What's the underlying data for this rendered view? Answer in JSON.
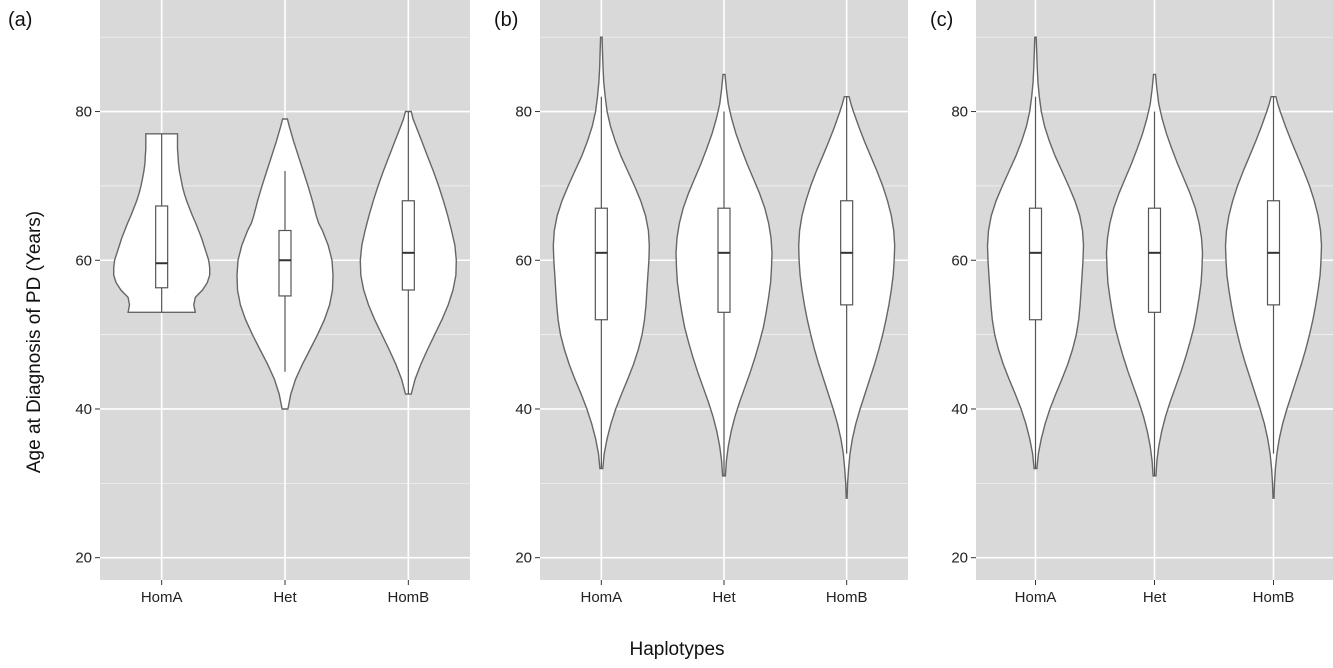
{
  "chart_data": [
    {
      "type": "violin",
      "panel_label": "(a)",
      "categories": [
        "HomA",
        "Het",
        "HomB"
      ],
      "ylim": [
        17,
        95
      ],
      "yticks": [
        20,
        40,
        60,
        80
      ],
      "grid": true,
      "distributions": [
        {
          "name": "HomA",
          "min": 53,
          "max": 77,
          "q1": 56.3,
          "median": 59.6,
          "q3": 67.3,
          "whisker_low": 53,
          "whisker_high": 77,
          "profile": [
            [
              53,
              0.7
            ],
            [
              54,
              0.67
            ],
            [
              55,
              0.7
            ],
            [
              56,
              0.85
            ],
            [
              57,
              0.95
            ],
            [
              58,
              1.0
            ],
            [
              59,
              1.0
            ],
            [
              60,
              0.98
            ],
            [
              61,
              0.93
            ],
            [
              62,
              0.88
            ],
            [
              63,
              0.83
            ],
            [
              64,
              0.77
            ],
            [
              65,
              0.71
            ],
            [
              66,
              0.64
            ],
            [
              67,
              0.58
            ],
            [
              68,
              0.52
            ],
            [
              69,
              0.47
            ],
            [
              70,
              0.43
            ],
            [
              71,
              0.4
            ],
            [
              72,
              0.37
            ],
            [
              73,
              0.35
            ],
            [
              74,
              0.34
            ],
            [
              75,
              0.33
            ],
            [
              76,
              0.33
            ],
            [
              77,
              0.33
            ]
          ]
        },
        {
          "name": "Het",
          "min": 40,
          "max": 79,
          "q1": 55.2,
          "median": 60,
          "q3": 64,
          "whisker_low": 45,
          "whisker_high": 72,
          "profile": [
            [
              40,
              0.06
            ],
            [
              42,
              0.12
            ],
            [
              44,
              0.22
            ],
            [
              46,
              0.36
            ],
            [
              48,
              0.52
            ],
            [
              50,
              0.68
            ],
            [
              52,
              0.82
            ],
            [
              54,
              0.93
            ],
            [
              56,
              0.99
            ],
            [
              58,
              1.0
            ],
            [
              60,
              0.98
            ],
            [
              62,
              0.9
            ],
            [
              64,
              0.78
            ],
            [
              65,
              0.7
            ],
            [
              66,
              0.65
            ],
            [
              68,
              0.57
            ],
            [
              70,
              0.48
            ],
            [
              72,
              0.38
            ],
            [
              74,
              0.28
            ],
            [
              76,
              0.18
            ],
            [
              78,
              0.09
            ],
            [
              79,
              0.05
            ]
          ]
        },
        {
          "name": "HomB",
          "min": 42,
          "max": 80,
          "q1": 56,
          "median": 61,
          "q3": 68,
          "whisker_low": 42,
          "whisker_high": 80,
          "profile": [
            [
              42,
              0.06
            ],
            [
              44,
              0.14
            ],
            [
              46,
              0.26
            ],
            [
              48,
              0.4
            ],
            [
              50,
              0.55
            ],
            [
              52,
              0.7
            ],
            [
              54,
              0.83
            ],
            [
              56,
              0.93
            ],
            [
              58,
              0.99
            ],
            [
              60,
              1.0
            ],
            [
              62,
              0.97
            ],
            [
              64,
              0.9
            ],
            [
              66,
              0.82
            ],
            [
              68,
              0.73
            ],
            [
              70,
              0.63
            ],
            [
              72,
              0.52
            ],
            [
              74,
              0.4
            ],
            [
              76,
              0.28
            ],
            [
              78,
              0.16
            ],
            [
              79,
              0.1
            ],
            [
              80,
              0.06
            ]
          ]
        }
      ]
    },
    {
      "type": "violin",
      "panel_label": "(b)",
      "categories": [
        "HomA",
        "Het",
        "HomB"
      ],
      "ylim": [
        17,
        95
      ],
      "yticks": [
        20,
        40,
        60,
        80
      ],
      "grid": true,
      "distributions": [
        {
          "name": "HomA",
          "min": 32,
          "max": 90,
          "q1": 52,
          "median": 61,
          "q3": 67,
          "whisker_low": 32,
          "whisker_high": 82,
          "profile": [
            [
              32,
              0.03
            ],
            [
              34,
              0.06
            ],
            [
              36,
              0.12
            ],
            [
              38,
              0.2
            ],
            [
              40,
              0.3
            ],
            [
              42,
              0.42
            ],
            [
              44,
              0.55
            ],
            [
              46,
              0.67
            ],
            [
              48,
              0.77
            ],
            [
              50,
              0.85
            ],
            [
              52,
              0.9
            ],
            [
              54,
              0.93
            ],
            [
              56,
              0.95
            ],
            [
              58,
              0.97
            ],
            [
              60,
              0.99
            ],
            [
              62,
              1.0
            ],
            [
              64,
              0.98
            ],
            [
              66,
              0.92
            ],
            [
              68,
              0.82
            ],
            [
              70,
              0.69
            ],
            [
              72,
              0.55
            ],
            [
              74,
              0.41
            ],
            [
              76,
              0.29
            ],
            [
              78,
              0.19
            ],
            [
              80,
              0.12
            ],
            [
              82,
              0.08
            ],
            [
              84,
              0.05
            ],
            [
              86,
              0.035
            ],
            [
              88,
              0.025
            ],
            [
              90,
              0.015
            ]
          ]
        },
        {
          "name": "Het",
          "min": 31,
          "max": 85,
          "q1": 53,
          "median": 61,
          "q3": 67,
          "whisker_low": 31,
          "whisker_high": 80,
          "profile": [
            [
              31,
              0.03
            ],
            [
              33,
              0.05
            ],
            [
              35,
              0.09
            ],
            [
              37,
              0.15
            ],
            [
              39,
              0.23
            ],
            [
              41,
              0.33
            ],
            [
              43,
              0.44
            ],
            [
              45,
              0.55
            ],
            [
              47,
              0.65
            ],
            [
              49,
              0.74
            ],
            [
              51,
              0.82
            ],
            [
              53,
              0.88
            ],
            [
              55,
              0.93
            ],
            [
              57,
              0.97
            ],
            [
              59,
              0.99
            ],
            [
              61,
              1.0
            ],
            [
              63,
              0.98
            ],
            [
              65,
              0.93
            ],
            [
              67,
              0.85
            ],
            [
              69,
              0.74
            ],
            [
              71,
              0.61
            ],
            [
              73,
              0.48
            ],
            [
              75,
              0.36
            ],
            [
              77,
              0.25
            ],
            [
              79,
              0.16
            ],
            [
              81,
              0.09
            ],
            [
              83,
              0.05
            ],
            [
              85,
              0.02
            ]
          ]
        },
        {
          "name": "HomB",
          "min": 28,
          "max": 82,
          "q1": 54,
          "median": 61,
          "q3": 68,
          "whisker_low": 34,
          "whisker_high": 82,
          "profile": [
            [
              28,
              0.01
            ],
            [
              30,
              0.02
            ],
            [
              32,
              0.04
            ],
            [
              34,
              0.07
            ],
            [
              36,
              0.12
            ],
            [
              38,
              0.19
            ],
            [
              40,
              0.28
            ],
            [
              42,
              0.38
            ],
            [
              44,
              0.48
            ],
            [
              46,
              0.58
            ],
            [
              48,
              0.67
            ],
            [
              50,
              0.75
            ],
            [
              52,
              0.82
            ],
            [
              54,
              0.88
            ],
            [
              56,
              0.93
            ],
            [
              58,
              0.97
            ],
            [
              60,
              0.99
            ],
            [
              62,
              1.0
            ],
            [
              64,
              0.98
            ],
            [
              66,
              0.93
            ],
            [
              68,
              0.85
            ],
            [
              70,
              0.75
            ],
            [
              72,
              0.63
            ],
            [
              74,
              0.5
            ],
            [
              76,
              0.37
            ],
            [
              78,
              0.25
            ],
            [
              80,
              0.14
            ],
            [
              81,
              0.09
            ],
            [
              82,
              0.05
            ]
          ]
        }
      ]
    },
    {
      "type": "violin",
      "panel_label": "(c)",
      "categories": [
        "HomA",
        "Het",
        "HomB"
      ],
      "ylim": [
        17,
        95
      ],
      "yticks": [
        20,
        40,
        60,
        80
      ],
      "grid": true,
      "distributions": [
        {
          "name": "HomA",
          "min": 32,
          "max": 90,
          "q1": 52,
          "median": 61,
          "q3": 67,
          "whisker_low": 32,
          "whisker_high": 82,
          "profile": [
            [
              32,
              0.03
            ],
            [
              34,
              0.06
            ],
            [
              36,
              0.12
            ],
            [
              38,
              0.2
            ],
            [
              40,
              0.3
            ],
            [
              42,
              0.42
            ],
            [
              44,
              0.55
            ],
            [
              46,
              0.67
            ],
            [
              48,
              0.77
            ],
            [
              50,
              0.85
            ],
            [
              52,
              0.9
            ],
            [
              54,
              0.93
            ],
            [
              56,
              0.95
            ],
            [
              58,
              0.97
            ],
            [
              60,
              0.99
            ],
            [
              62,
              1.0
            ],
            [
              64,
              0.98
            ],
            [
              66,
              0.92
            ],
            [
              68,
              0.82
            ],
            [
              70,
              0.69
            ],
            [
              72,
              0.55
            ],
            [
              74,
              0.41
            ],
            [
              76,
              0.29
            ],
            [
              78,
              0.19
            ],
            [
              80,
              0.12
            ],
            [
              82,
              0.08
            ],
            [
              84,
              0.05
            ],
            [
              86,
              0.035
            ],
            [
              88,
              0.025
            ],
            [
              90,
              0.015
            ]
          ]
        },
        {
          "name": "Het",
          "min": 31,
          "max": 85,
          "q1": 53,
          "median": 61,
          "q3": 67,
          "whisker_low": 31,
          "whisker_high": 80,
          "profile": [
            [
              31,
              0.03
            ],
            [
              33,
              0.05
            ],
            [
              35,
              0.09
            ],
            [
              37,
              0.15
            ],
            [
              39,
              0.23
            ],
            [
              41,
              0.33
            ],
            [
              43,
              0.44
            ],
            [
              45,
              0.55
            ],
            [
              47,
              0.65
            ],
            [
              49,
              0.74
            ],
            [
              51,
              0.82
            ],
            [
              53,
              0.88
            ],
            [
              55,
              0.93
            ],
            [
              57,
              0.97
            ],
            [
              59,
              0.99
            ],
            [
              61,
              1.0
            ],
            [
              63,
              0.98
            ],
            [
              65,
              0.93
            ],
            [
              67,
              0.85
            ],
            [
              69,
              0.74
            ],
            [
              71,
              0.61
            ],
            [
              73,
              0.48
            ],
            [
              75,
              0.36
            ],
            [
              77,
              0.25
            ],
            [
              79,
              0.16
            ],
            [
              81,
              0.09
            ],
            [
              83,
              0.05
            ],
            [
              85,
              0.02
            ]
          ]
        },
        {
          "name": "HomB",
          "min": 28,
          "max": 82,
          "q1": 54,
          "median": 61,
          "q3": 68,
          "whisker_low": 34,
          "whisker_high": 82,
          "profile": [
            [
              28,
              0.01
            ],
            [
              30,
              0.02
            ],
            [
              32,
              0.04
            ],
            [
              34,
              0.07
            ],
            [
              36,
              0.12
            ],
            [
              38,
              0.19
            ],
            [
              40,
              0.28
            ],
            [
              42,
              0.38
            ],
            [
              44,
              0.48
            ],
            [
              46,
              0.58
            ],
            [
              48,
              0.67
            ],
            [
              50,
              0.75
            ],
            [
              52,
              0.82
            ],
            [
              54,
              0.88
            ],
            [
              56,
              0.93
            ],
            [
              58,
              0.97
            ],
            [
              60,
              0.99
            ],
            [
              62,
              1.0
            ],
            [
              64,
              0.98
            ],
            [
              66,
              0.93
            ],
            [
              68,
              0.85
            ],
            [
              70,
              0.75
            ],
            [
              72,
              0.63
            ],
            [
              74,
              0.5
            ],
            [
              76,
              0.37
            ],
            [
              78,
              0.25
            ],
            [
              80,
              0.14
            ],
            [
              81,
              0.09
            ],
            [
              82,
              0.05
            ]
          ]
        }
      ]
    }
  ],
  "shared": {
    "ylabel": "Age at Diagnosis of PD (Years)",
    "xlabel": "Haplotypes"
  },
  "colors": {
    "panel_background": "#d9d9d9",
    "gridlines": "#ffffff",
    "violin_fill": "#ffffff",
    "outline": "#666666"
  }
}
